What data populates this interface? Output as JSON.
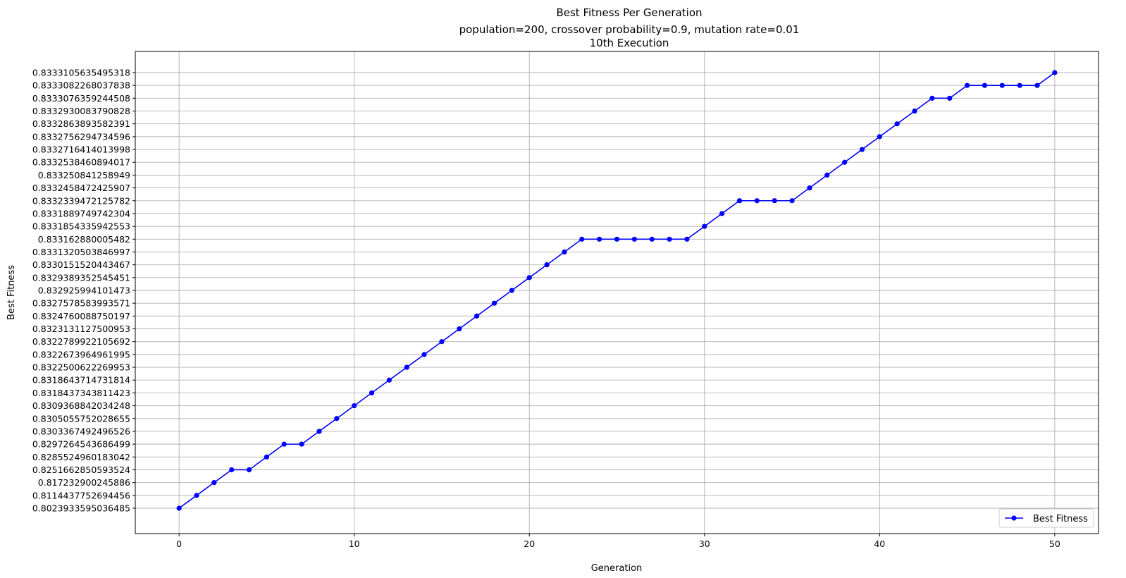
{
  "chart_data": {
    "type": "line",
    "title_lines": [
      "Best Fitness Per Generation",
      "population=200, crossover probability=0.9, mutation rate=0.01",
      "10th Execution"
    ],
    "xlabel": "Generation",
    "ylabel": "Best Fitness",
    "x_ticks": [
      "0",
      "10",
      "20",
      "30",
      "40",
      "50"
    ],
    "xlim": [
      -2.5,
      52.5
    ],
    "y_axis_kind": "categorical",
    "y_levels": [
      "0.8023933595036485",
      "0.8114437752694456",
      "0.817232900245886",
      "0.8251662850593524",
      "0.8285524960183042",
      "0.8297264543686499",
      "0.8303367492496526",
      "0.8305055752028655",
      "0.8309368842034248",
      "0.8318437343811423",
      "0.8318643714731814",
      "0.8322500622269953",
      "0.8322673964961995",
      "0.8322789922105692",
      "0.8323131127500953",
      "0.8324760088750197",
      "0.8327578583993571",
      "0.832925994101473",
      "0.8329389352545451",
      "0.8330151520443467",
      "0.8331320503846997",
      "0.833162880005482",
      "0.8331854335942553",
      "0.8331889749742304",
      "0.8332339472125782",
      "0.8332458472425907",
      "0.833250841258949",
      "0.8332538460894017",
      "0.8332716414013998",
      "0.8332756294734596",
      "0.8332863893582391",
      "0.8332930083790828",
      "0.8333076359244508",
      "0.8333082268037838",
      "0.8333105635495318"
    ],
    "grid": true,
    "legend_position": "lower-right",
    "series": [
      {
        "name": "Best Fitness",
        "color": "#0000ff",
        "marker": "circle",
        "x": [
          0,
          1,
          2,
          3,
          4,
          5,
          6,
          7,
          8,
          9,
          10,
          11,
          12,
          13,
          14,
          15,
          16,
          17,
          18,
          19,
          20,
          21,
          22,
          23,
          24,
          25,
          26,
          27,
          28,
          29,
          30,
          31,
          32,
          33,
          34,
          35,
          36,
          37,
          38,
          39,
          40,
          41,
          42,
          43,
          44,
          45,
          46,
          47,
          48,
          49,
          50
        ],
        "y": [
          "0.8023933595036485",
          "0.8114437752694456",
          "0.817232900245886",
          "0.8251662850593524",
          "0.8251662850593524",
          "0.8285524960183042",
          "0.8297264543686499",
          "0.8297264543686499",
          "0.8303367492496526",
          "0.8305055752028655",
          "0.8309368842034248",
          "0.8318437343811423",
          "0.8318643714731814",
          "0.8322500622269953",
          "0.8322673964961995",
          "0.8322789922105692",
          "0.8323131127500953",
          "0.8324760088750197",
          "0.8327578583993571",
          "0.832925994101473",
          "0.8329389352545451",
          "0.8330151520443467",
          "0.8331320503846997",
          "0.833162880005482",
          "0.833162880005482",
          "0.833162880005482",
          "0.833162880005482",
          "0.833162880005482",
          "0.833162880005482",
          "0.833162880005482",
          "0.8331854335942553",
          "0.8331889749742304",
          "0.8332339472125782",
          "0.8332339472125782",
          "0.8332339472125782",
          "0.8332339472125782",
          "0.8332458472425907",
          "0.833250841258949",
          "0.8332538460894017",
          "0.8332716414013998",
          "0.8332756294734596",
          "0.8332863893582391",
          "0.8332930083790828",
          "0.8333076359244508",
          "0.8333076359244508",
          "0.8333082268037838",
          "0.8333082268037838",
          "0.8333082268037838",
          "0.8333082268037838",
          "0.8333082268037838",
          "0.8333105635495318"
        ]
      }
    ]
  }
}
